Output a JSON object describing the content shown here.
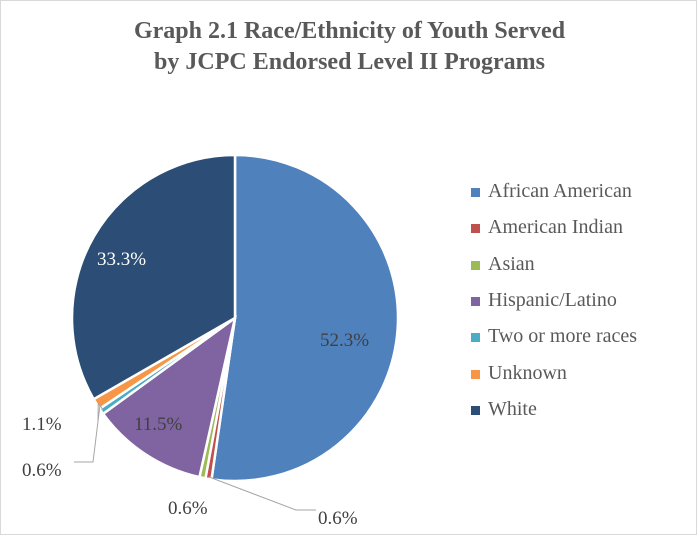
{
  "chart_data": {
    "type": "pie",
    "title": "Graph 2.1 Race/Ethnicity of Youth Served by JCPC Endorsed Level II Programs",
    "title_lines": [
      "Graph 2.1 Race/Ethnicity of Youth Served",
      "by JCPC Endorsed Level II Programs"
    ],
    "categories": [
      "African American",
      "American Indian",
      "Asian",
      "Hispanic/Latino",
      "Two or more races",
      "Unknown",
      "White"
    ],
    "values": [
      52.3,
      0.6,
      0.6,
      11.5,
      0.6,
      1.1,
      33.3
    ],
    "data_labels": [
      "52.3%",
      "",
      "0.6%",
      "11.5%",
      "0.6%",
      "1.1%",
      "33.3%"
    ],
    "extra_labels": [
      "0.6%"
    ],
    "colors": [
      "#4f81bd",
      "#c0504d",
      "#9bbb59",
      "#8064a2",
      "#4bacc6",
      "#f79646",
      "#2c4d75"
    ],
    "legend_position": "right"
  }
}
